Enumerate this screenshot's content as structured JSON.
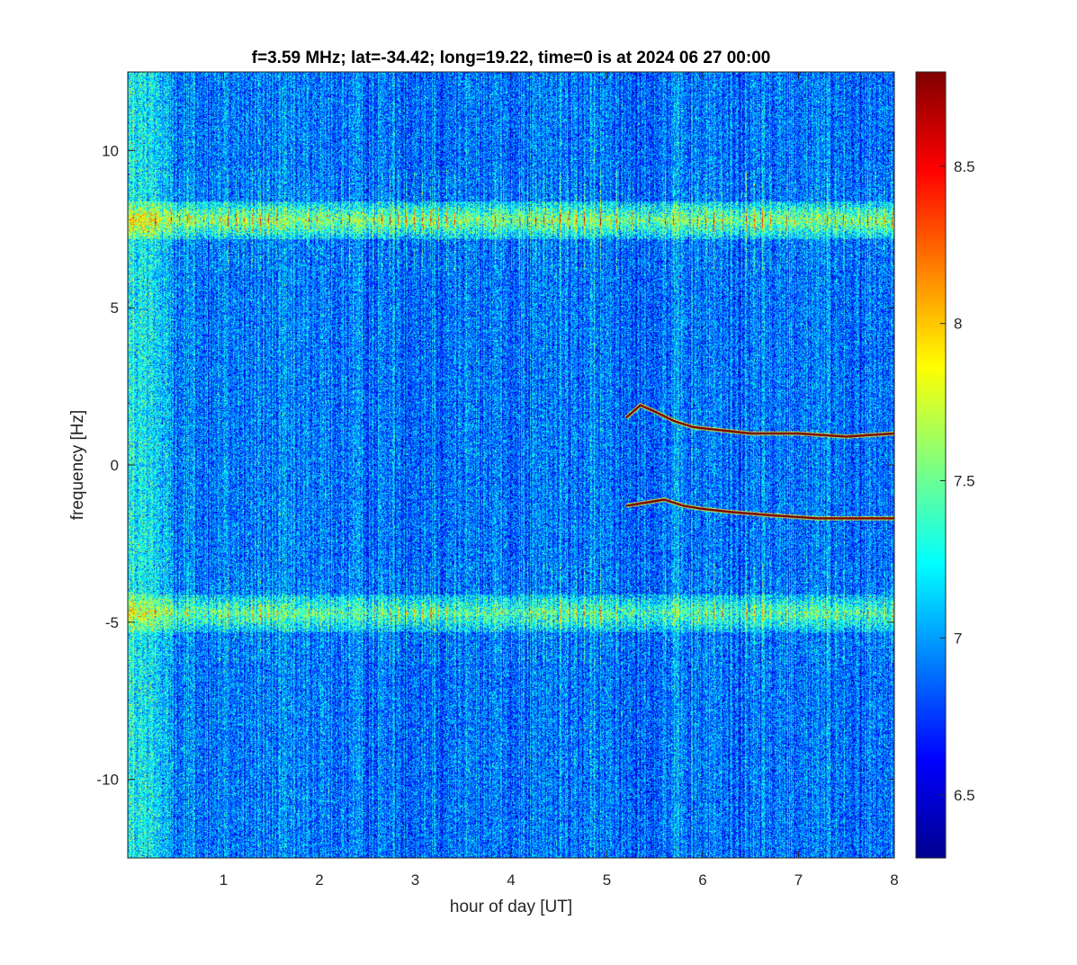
{
  "chart_data": {
    "type": "heatmap",
    "title": "f=3.59 MHz;  lat=-34.42; long=19.22, time=0 is at 2024 06 27 00:00",
    "xlabel": "hour of day [UT]",
    "ylabel": "frequency [Hz]",
    "xlim": [
      0,
      8
    ],
    "ylim": [
      -12.5,
      12.5
    ],
    "xticks": [
      1,
      2,
      3,
      4,
      5,
      6,
      7,
      8
    ],
    "yticks": [
      10,
      5,
      0,
      -5,
      -10
    ],
    "colormap": "jet",
    "clim": [
      6.3,
      8.8
    ],
    "colorbar_ticks": [
      8.5,
      8,
      7.5,
      7,
      6.5
    ],
    "background_level": 6.9,
    "features": [
      {
        "kind": "horizontal_band",
        "frequency_hz": 7.8,
        "width_hz": 1.0,
        "x_range": [
          0,
          8
        ],
        "level": 8.3
      },
      {
        "kind": "horizontal_band",
        "frequency_hz": -4.7,
        "width_hz": 1.0,
        "x_range": [
          0,
          8
        ],
        "level": 7.8
      },
      {
        "kind": "doppler_trace",
        "level": 8.8,
        "points": [
          [
            5.2,
            1.5
          ],
          [
            5.35,
            1.9
          ],
          [
            5.5,
            1.7
          ],
          [
            5.7,
            1.4
          ],
          [
            5.9,
            1.2
          ],
          [
            6.2,
            1.1
          ],
          [
            6.5,
            1.0
          ],
          [
            7.0,
            1.0
          ],
          [
            7.5,
            0.9
          ],
          [
            8.0,
            1.0
          ]
        ]
      },
      {
        "kind": "doppler_trace",
        "level": 8.8,
        "points": [
          [
            5.2,
            -1.3
          ],
          [
            5.4,
            -1.2
          ],
          [
            5.6,
            -1.1
          ],
          [
            5.8,
            -1.3
          ],
          [
            6.0,
            -1.4
          ],
          [
            6.3,
            -1.5
          ],
          [
            6.7,
            -1.6
          ],
          [
            7.2,
            -1.7
          ],
          [
            7.6,
            -1.7
          ],
          [
            8.0,
            -1.7
          ]
        ]
      },
      {
        "kind": "low_frequency_enhancement",
        "x_range": [
          0,
          0.7
        ],
        "level": 7.4
      }
    ]
  }
}
